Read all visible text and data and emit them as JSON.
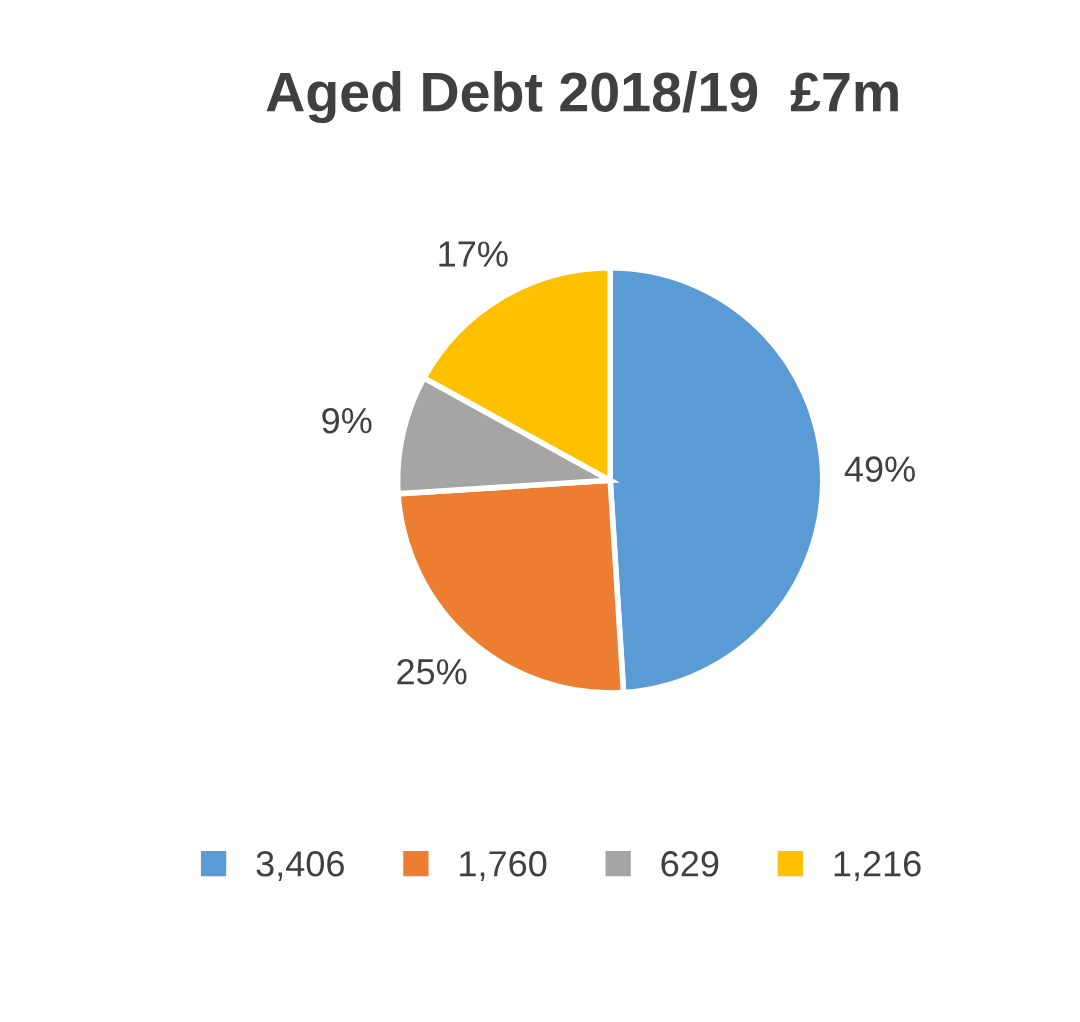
{
  "chart_data": {
    "type": "pie",
    "title": "Aged Debt 2018/19  £7m",
    "categories": [
      "3,406",
      "1,760",
      "629",
      "1,216"
    ],
    "values": [
      49,
      25,
      9,
      17
    ],
    "colors": [
      "#5b9bd5",
      "#ed7d31",
      "#a5a5a5",
      "#ffc000"
    ],
    "value_labels": [
      "49%",
      "25%",
      "9%",
      "17%"
    ],
    "legend": "bottom"
  }
}
